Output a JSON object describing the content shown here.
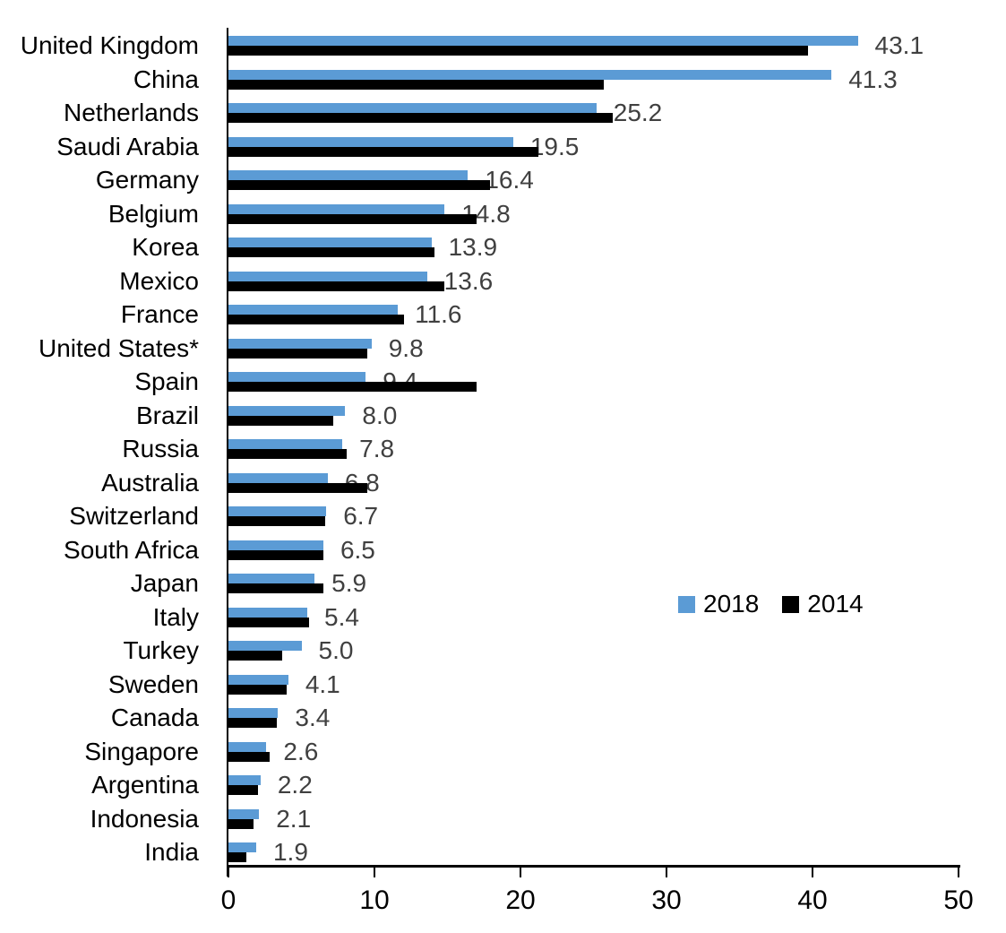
{
  "chart_data": {
    "type": "bar",
    "orientation": "horizontal",
    "title": "",
    "xlabel": "",
    "ylabel": "",
    "xlim": [
      0,
      50
    ],
    "x_tick_labels": [
      "0",
      "10",
      "20",
      "30",
      "40",
      "50"
    ],
    "x_tick_values": [
      0,
      10,
      20,
      30,
      40,
      50
    ],
    "grid": false,
    "legend_position": "middle-right",
    "categories": [
      "United Kingdom",
      "China",
      "Netherlands",
      "Saudi Arabia",
      "Germany",
      "Belgium",
      "Korea",
      "Mexico",
      "France",
      "United States*",
      "Spain",
      "Brazil",
      "Russia",
      "Australia",
      "Switzerland",
      "South Africa",
      "Japan",
      "Italy",
      "Turkey",
      "Sweden",
      "Canada",
      "Singapore",
      "Argentina",
      "Indonesia",
      "India"
    ],
    "series": [
      {
        "name": "2018",
        "color": "#5B9BD5",
        "values": [
          43.1,
          41.3,
          25.2,
          19.5,
          16.4,
          14.8,
          13.9,
          13.6,
          11.6,
          9.8,
          9.4,
          8.0,
          7.8,
          6.8,
          6.7,
          6.5,
          5.9,
          5.4,
          5.0,
          4.1,
          3.4,
          2.6,
          2.2,
          2.1,
          1.9
        ],
        "data_labels": [
          "43.1",
          "41.3",
          "25.2",
          "19.5",
          "16.4",
          "14.8",
          "13.9",
          "13.6",
          "11.6",
          "9.8",
          "9.4",
          "8.0",
          "7.8",
          "6.8",
          "6.7",
          "6.5",
          "5.9",
          "5.4",
          "5.0",
          "4.1",
          "3.4",
          "2.6",
          "2.2",
          "2.1",
          "1.9"
        ]
      },
      {
        "name": "2014",
        "color": "#000000",
        "values": [
          39.7,
          25.7,
          26.3,
          21.2,
          17.9,
          17.0,
          14.1,
          14.8,
          12.0,
          9.5,
          17.0,
          7.2,
          8.1,
          9.5,
          6.6,
          6.5,
          6.5,
          5.5,
          3.7,
          4.0,
          3.3,
          2.8,
          2.0,
          1.7,
          1.2
        ],
        "data_labels": []
      }
    ]
  },
  "colors": {
    "background": "#FFFFFF",
    "bar_2018": "#5B9BD5",
    "bar_2014": "#000000",
    "value_label": "#404040",
    "axis": "#000000",
    "category_text": "#000000"
  }
}
